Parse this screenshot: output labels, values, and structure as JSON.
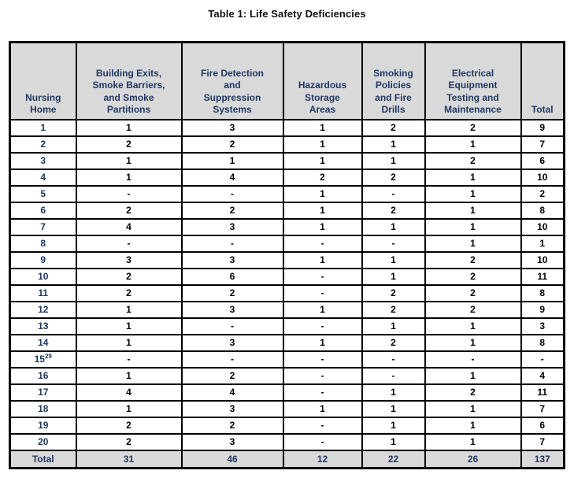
{
  "title": "Table 1: Life Safety Deficiencies",
  "colors": {
    "header_text": "#1F3864",
    "header_background": "#D9D9D9",
    "body_text": "#000000",
    "border": "#000000",
    "page_background": "#FFFFFF"
  },
  "table": {
    "columns": [
      "Nursing\nHome",
      "Building Exits,\nSmoke Barriers,\nand Smoke\nPartitions",
      "Fire Detection\nand\nSuppression\nSystems",
      "Hazardous\nStorage\nAreas",
      "Smoking\nPolicies\nand Fire\nDrills",
      "Electrical\nEquipment\nTesting and\nMaintenance",
      "Total"
    ],
    "rows": [
      {
        "home": "1",
        "values": [
          "1",
          "3",
          "1",
          "2",
          "2"
        ],
        "total": "9"
      },
      {
        "home": "2",
        "values": [
          "2",
          "2",
          "1",
          "1",
          "1"
        ],
        "total": "7"
      },
      {
        "home": "3",
        "values": [
          "1",
          "1",
          "1",
          "1",
          "2"
        ],
        "total": "6"
      },
      {
        "home": "4",
        "values": [
          "1",
          "4",
          "2",
          "2",
          "1"
        ],
        "total": "10"
      },
      {
        "home": "5",
        "values": [
          "-",
          "-",
          "1",
          "-",
          "1"
        ],
        "total": "2"
      },
      {
        "home": "6",
        "values": [
          "2",
          "2",
          "1",
          "2",
          "1"
        ],
        "total": "8"
      },
      {
        "home": "7",
        "values": [
          "4",
          "3",
          "1",
          "1",
          "1"
        ],
        "total": "10"
      },
      {
        "home": "8",
        "values": [
          "-",
          "-",
          "-",
          "-",
          "1"
        ],
        "total": "1"
      },
      {
        "home": "9",
        "values": [
          "3",
          "3",
          "1",
          "1",
          "2"
        ],
        "total": "10"
      },
      {
        "home": "10",
        "values": [
          "2",
          "6",
          "-",
          "1",
          "2"
        ],
        "total": "11"
      },
      {
        "home": "11",
        "values": [
          "2",
          "2",
          "-",
          "2",
          "2"
        ],
        "total": "8"
      },
      {
        "home": "12",
        "values": [
          "1",
          "3",
          "1",
          "2",
          "2"
        ],
        "total": "9"
      },
      {
        "home": "13",
        "values": [
          "1",
          "-",
          "-",
          "1",
          "1"
        ],
        "total": "3"
      },
      {
        "home": "14",
        "values": [
          "1",
          "3",
          "1",
          "2",
          "1"
        ],
        "total": "8"
      },
      {
        "home": "15",
        "sup": "29",
        "values": [
          "-",
          "-",
          "-",
          "-",
          "-"
        ],
        "total": "-"
      },
      {
        "home": "16",
        "values": [
          "1",
          "2",
          "-",
          "-",
          "1"
        ],
        "total": "4"
      },
      {
        "home": "17",
        "values": [
          "4",
          "4",
          "-",
          "1",
          "2"
        ],
        "total": "11"
      },
      {
        "home": "18",
        "values": [
          "1",
          "3",
          "1",
          "1",
          "1"
        ],
        "total": "7"
      },
      {
        "home": "19",
        "values": [
          "2",
          "2",
          "-",
          "1",
          "1"
        ],
        "total": "6"
      },
      {
        "home": "20",
        "values": [
          "2",
          "3",
          "-",
          "1",
          "1"
        ],
        "total": "7"
      }
    ],
    "footer": {
      "label": "Total",
      "values": [
        "31",
        "46",
        "12",
        "22",
        "26"
      ],
      "total": "137"
    }
  }
}
